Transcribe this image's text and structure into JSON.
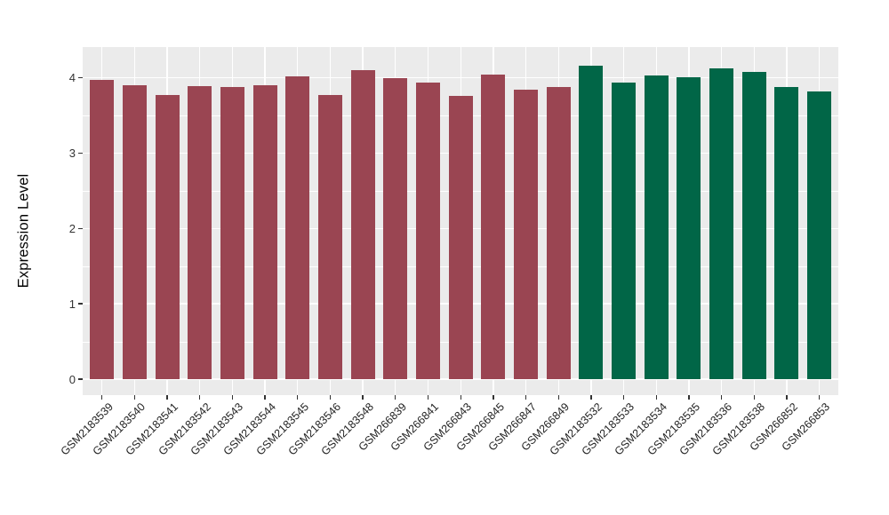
{
  "chart_data": {
    "type": "bar",
    "title": "",
    "xlabel": "",
    "ylabel": "Expression Level",
    "ylim": [
      0,
      4.4
    ],
    "yticks": [
      0,
      1,
      2,
      3,
      4
    ],
    "yticks_minor": [
      0.5,
      1.5,
      2.5,
      3.5
    ],
    "grid": "on",
    "legend": "none",
    "categories": [
      "GSM2183539",
      "GSM2183540",
      "GSM2183541",
      "GSM2183542",
      "GSM2183543",
      "GSM2183544",
      "GSM2183545",
      "GSM2183546",
      "GSM2183548",
      "GSM266839",
      "GSM266841",
      "GSM266843",
      "GSM266845",
      "GSM266847",
      "GSM266849",
      "GSM2183532",
      "GSM2183533",
      "GSM2183534",
      "GSM2183535",
      "GSM2183536",
      "GSM2183538",
      "GSM266852",
      "GSM266853"
    ],
    "values": [
      3.97,
      3.9,
      3.77,
      3.89,
      3.88,
      3.9,
      4.02,
      3.77,
      4.1,
      3.99,
      3.93,
      3.76,
      4.04,
      3.84,
      3.87,
      4.16,
      3.93,
      4.03,
      4.0,
      4.12,
      4.07,
      3.88,
      3.82
    ],
    "groups": [
      "maroon",
      "maroon",
      "maroon",
      "maroon",
      "maroon",
      "maroon",
      "maroon",
      "maroon",
      "maroon",
      "maroon",
      "maroon",
      "maroon",
      "maroon",
      "maroon",
      "maroon",
      "green",
      "green",
      "green",
      "green",
      "green",
      "green",
      "green",
      "green"
    ],
    "group_colors": {
      "maroon": "#9A4552",
      "green": "#016647"
    }
  },
  "colors": {
    "panel_background": "#EBEBEB",
    "grid": "#FFFFFF",
    "tick_marks": "#333333",
    "tick_text": "#333333",
    "axis_title_text": "#000000",
    "page_background": "#FFFFFF"
  }
}
